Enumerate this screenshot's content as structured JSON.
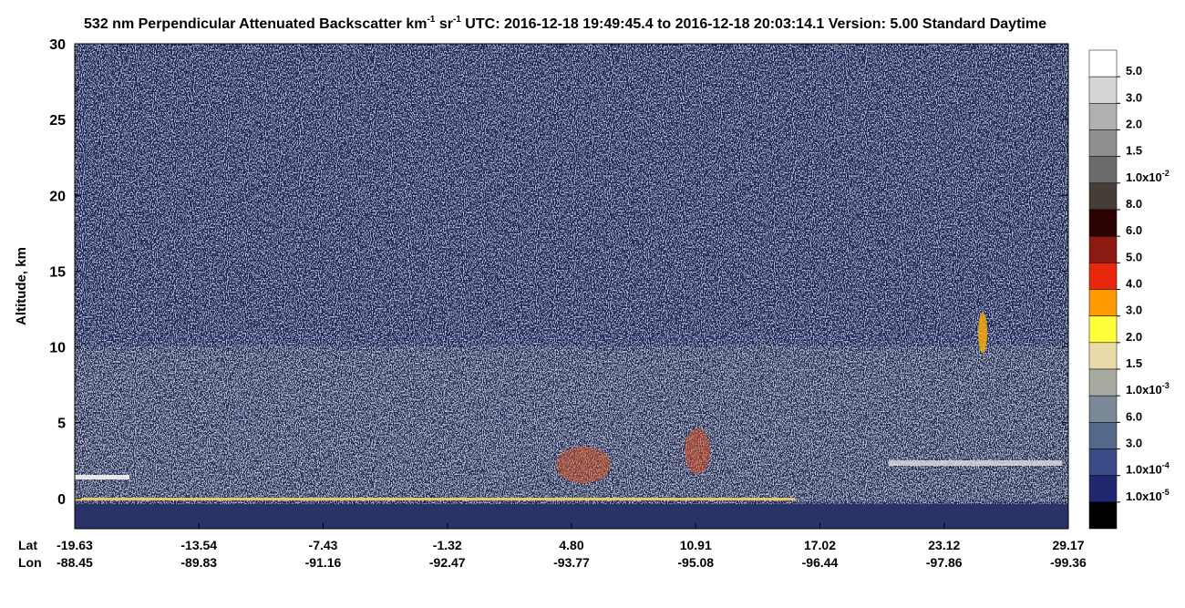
{
  "chart_data": {
    "type": "curtain",
    "title": [
      "532 nm Perpendicular Attenuated Backscatter km",
      "-1",
      " sr",
      "-1",
      "  UTC: 2016-12-18 19:49:45.4 to 2016-12-18 20:03:14.1  Version: 5.00 Standard Daytime"
    ],
    "ylabel": "Altitude, km",
    "ylim": [
      -2,
      30
    ],
    "yticks": [
      0,
      5,
      10,
      15,
      20,
      25,
      30
    ],
    "x_row_labels": [
      "Lat",
      "Lon"
    ],
    "lat": [
      "-19.63",
      "-13.54",
      "-7.43",
      "-1.32",
      "4.80",
      "10.91",
      "17.02",
      "23.12",
      "29.17"
    ],
    "lon": [
      "-88.45",
      "-89.83",
      "-91.16",
      "-92.47",
      "-93.77",
      "-95.08",
      "-96.44",
      "-97.86",
      "-99.36"
    ],
    "colorbar": {
      "colors": [
        "#ffffff",
        "#d6d6d6",
        "#b0b0b0",
        "#8f8f8f",
        "#6b6b6b",
        "#463c38",
        "#2e0303",
        "#8a1a12",
        "#e8280c",
        "#ff9a00",
        "#ffff3a",
        "#eadcaa",
        "#a9aba0",
        "#7b8898",
        "#52698a",
        "#3a4a86",
        "#212870",
        "#000000"
      ],
      "labels": [
        {
          "text": "5.0"
        },
        {
          "text": "3.0"
        },
        {
          "text": "2.0"
        },
        {
          "text": "1.5"
        },
        {
          "text": "1.0x10",
          "sup": "-2"
        },
        {
          "text": "8.0"
        },
        {
          "text": "6.0"
        },
        {
          "text": "5.0"
        },
        {
          "text": "4.0"
        },
        {
          "text": "3.0"
        },
        {
          "text": "2.0"
        },
        {
          "text": "1.5"
        },
        {
          "text": "1.0x10",
          "sup": "-3"
        },
        {
          "text": "6.0"
        },
        {
          "text": "3.0"
        },
        {
          "text": "1.0x10",
          "sup": "-4"
        },
        {
          "text": "1.0x10",
          "sup": "-5"
        }
      ]
    }
  }
}
